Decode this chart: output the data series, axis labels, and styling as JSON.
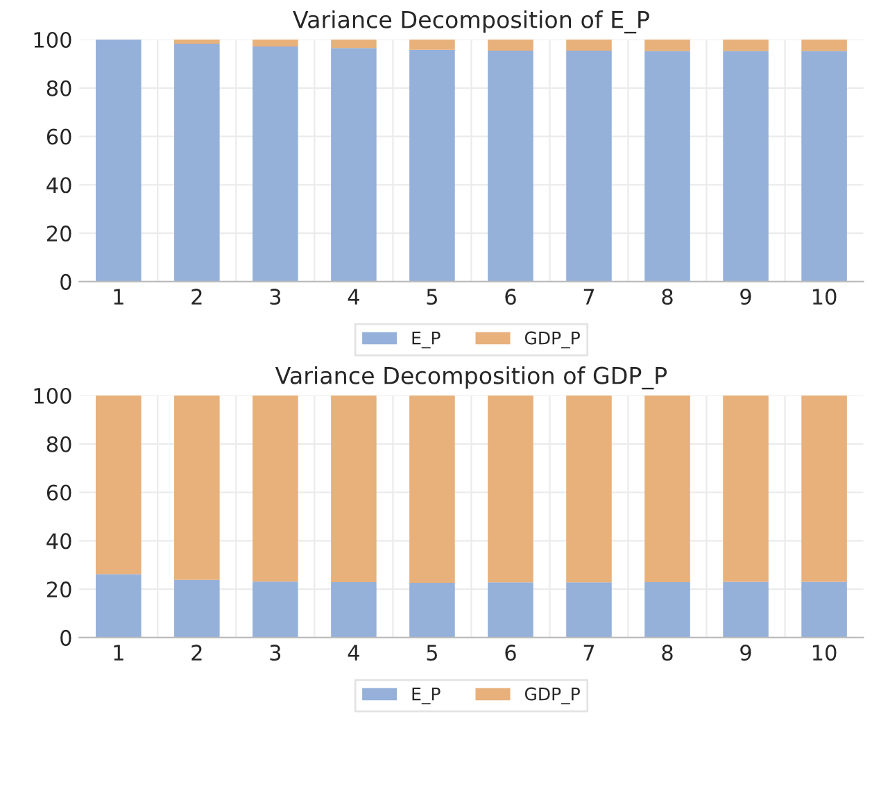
{
  "chart_data": [
    {
      "type": "bar",
      "title": "Variance Decomposition of E_P",
      "categories": [
        "1",
        "2",
        "3",
        "4",
        "5",
        "6",
        "7",
        "8",
        "9",
        "10"
      ],
      "stacked": true,
      "series": [
        {
          "name": "E_P",
          "color": "#95b0d9",
          "values": [
            100,
            98.3,
            97.1,
            96.5,
            95.8,
            95.4,
            95.4,
            95.3,
            95.3,
            95.3
          ]
        },
        {
          "name": "GDP_P",
          "color": "#e8b07a",
          "values": [
            null,
            1.7,
            2.9,
            3.5,
            4.2,
            4.6,
            4.6,
            4.7,
            4.7,
            4.7
          ]
        }
      ],
      "ylim": [
        0,
        100
      ],
      "yticks": [
        0,
        20,
        40,
        60,
        80,
        100
      ],
      "grid": true,
      "legend": "bottom"
    },
    {
      "type": "bar",
      "title": "Variance Decomposition of GDP_P",
      "categories": [
        "1",
        "2",
        "3",
        "4",
        "5",
        "6",
        "7",
        "8",
        "9",
        "10"
      ],
      "stacked": true,
      "series": [
        {
          "name": "E_P",
          "color": "#95b0d9",
          "values": [
            26.2,
            23.8,
            23.1,
            22.9,
            22.6,
            22.8,
            22.8,
            22.9,
            23.0,
            23.0
          ]
        },
        {
          "name": "GDP_P",
          "color": "#e8b07a",
          "values": [
            73.8,
            76.2,
            76.9,
            77.1,
            77.4,
            77.2,
            77.2,
            77.1,
            77.0,
            77.0
          ]
        }
      ],
      "ylim": [
        0,
        100
      ],
      "yticks": [
        0,
        20,
        40,
        60,
        80,
        100
      ],
      "grid": true,
      "legend": "bottom"
    }
  ]
}
